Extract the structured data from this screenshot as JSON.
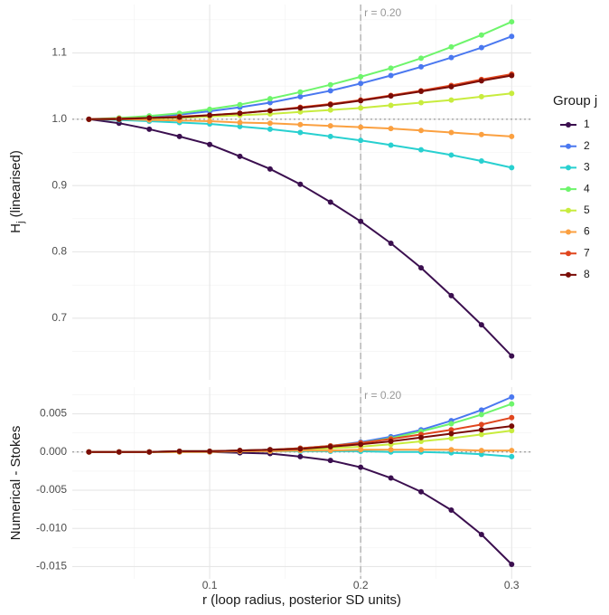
{
  "chart_data": [
    {
      "type": "line",
      "ylabel_main": "H",
      "ylabel_sub": "j",
      "ylabel_rest": " (linearised)",
      "legend_title": "Group j",
      "annotation": "r = 0.20",
      "vline": 0.2,
      "hline": 1,
      "x": [
        0.02,
        0.04,
        0.06,
        0.08,
        0.1,
        0.12,
        0.14,
        0.16,
        0.18,
        0.2,
        0.22,
        0.24,
        0.26,
        0.28,
        0.3
      ],
      "xlim": [
        0.009,
        0.313
      ],
      "xticks": [
        0.1,
        0.2,
        0.3
      ],
      "xminor": [
        0.05,
        0.15,
        0.25
      ],
      "ylim": [
        0.607,
        1.173
      ],
      "yticks": [
        0.7,
        0.8,
        0.9,
        {
          "value": 1,
          "label": "1.0"
        },
        1.1
      ],
      "yminor": [
        0.65,
        0.75,
        0.85,
        0.95,
        1.05,
        1.15
      ],
      "grid": true,
      "series": [
        {
          "name": "1",
          "color": "#3b0f4f",
          "values": [
            1.0,
            0.994,
            0.985,
            0.974,
            0.962,
            0.944,
            0.925,
            0.902,
            0.875,
            0.846,
            0.813,
            0.776,
            0.734,
            0.69,
            0.643
          ]
        },
        {
          "name": "2",
          "color": "#4a78f0",
          "values": [
            1.0,
            1.001,
            1.004,
            1.007,
            1.012,
            1.018,
            1.025,
            1.034,
            1.043,
            1.054,
            1.066,
            1.079,
            1.093,
            1.108,
            1.125
          ]
        },
        {
          "name": "3",
          "color": "#28d0d0",
          "values": [
            1.0,
            0.999,
            0.997,
            0.995,
            0.993,
            0.989,
            0.985,
            0.98,
            0.974,
            0.968,
            0.961,
            0.954,
            0.946,
            0.937,
            0.927
          ]
        },
        {
          "name": "4",
          "color": "#6ef56c",
          "values": [
            1.0,
            1.002,
            1.005,
            1.009,
            1.015,
            1.022,
            1.031,
            1.041,
            1.052,
            1.064,
            1.077,
            1.092,
            1.109,
            1.127,
            1.147
          ]
        },
        {
          "name": "5",
          "color": "#c8ec3e",
          "values": [
            1.0,
            1.0,
            1.001,
            1.002,
            1.004,
            1.006,
            1.008,
            1.011,
            1.014,
            1.017,
            1.021,
            1.025,
            1.029,
            1.034,
            1.039
          ]
        },
        {
          "name": "6",
          "color": "#fba040",
          "values": [
            1.0,
            1.0,
            0.999,
            0.998,
            0.997,
            0.995,
            0.994,
            0.992,
            0.99,
            0.988,
            0.986,
            0.983,
            0.98,
            0.977,
            0.974
          ]
        },
        {
          "name": "7",
          "color": "#e0461e",
          "values": [
            1.0,
            1.001,
            1.002,
            1.004,
            1.006,
            1.009,
            1.013,
            1.018,
            1.023,
            1.029,
            1.036,
            1.043,
            1.051,
            1.06,
            1.068
          ]
        },
        {
          "name": "8",
          "color": "#7a0c07",
          "values": [
            1.0,
            1.0,
            1.002,
            1.003,
            1.006,
            1.009,
            1.013,
            1.017,
            1.022,
            1.028,
            1.035,
            1.042,
            1.049,
            1.058,
            1.066
          ]
        }
      ]
    },
    {
      "type": "line",
      "ylabel": "Numerical - Stokes",
      "xlabel": "r (loop radius, posterior SD units)",
      "annotation": "r = 0.20",
      "vline": 0.2,
      "hline": 0,
      "x": [
        0.02,
        0.04,
        0.06,
        0.08,
        0.1,
        0.12,
        0.14,
        0.16,
        0.18,
        0.2,
        0.22,
        0.24,
        0.26,
        0.28,
        0.3
      ],
      "xlim": [
        0.009,
        0.313
      ],
      "xticks": [
        0.1,
        0.2,
        0.3
      ],
      "xminor": [
        0.05,
        0.15,
        0.25
      ],
      "ylim": [
        -0.0166,
        0.0085
      ],
      "yticks": [
        {
          "value": -0.015,
          "label": "-0.015"
        },
        {
          "value": -0.01,
          "label": "-0.010"
        },
        -0.005,
        {
          "value": 0,
          "label": "0.000"
        },
        0.005
      ],
      "yminor": [
        -0.0125,
        -0.0075,
        -0.0025,
        0.0025,
        0.0075
      ],
      "grid": true,
      "series": [
        {
          "name": "1",
          "color": "#3b0f4f",
          "values": [
            0,
            0,
            0,
            0,
            0,
            -0.0001,
            -0.0002,
            -0.0006,
            -0.0011,
            -0.002,
            -0.0034,
            -0.0052,
            -0.0076,
            -0.0108,
            -0.0147
          ]
        },
        {
          "name": "2",
          "color": "#4a78f0",
          "values": [
            0,
            0,
            0,
            0.0001,
            0.0001,
            0.0002,
            0.0003,
            0.0005,
            0.0008,
            0.0013,
            0.002,
            0.0029,
            0.0041,
            0.0055,
            0.0072
          ]
        },
        {
          "name": "3",
          "color": "#28d0d0",
          "values": [
            0,
            0,
            0,
            0,
            0,
            0.0001,
            0.0001,
            0.0001,
            0.0001,
            0.0001,
            0,
            0,
            -0.0001,
            -0.0003,
            -0.0006
          ]
        },
        {
          "name": "4",
          "color": "#6ef56c",
          "values": [
            0,
            0,
            0,
            0.0001,
            0.0001,
            0.0002,
            0.0003,
            0.0005,
            0.0008,
            0.0012,
            0.0018,
            0.0027,
            0.0037,
            0.0049,
            0.0063
          ]
        },
        {
          "name": "5",
          "color": "#c8ec3e",
          "values": [
            0,
            0,
            0,
            0,
            0.0001,
            0.0001,
            0.0002,
            0.0003,
            0.0005,
            0.0007,
            0.001,
            0.0014,
            0.0018,
            0.0023,
            0.0028
          ]
        },
        {
          "name": "6",
          "color": "#fba040",
          "values": [
            0,
            0,
            0,
            0,
            0,
            0.0001,
            0.0001,
            0.0002,
            0.0002,
            0.0003,
            0.0003,
            0.0003,
            0.0003,
            0.0002,
            0.0002
          ]
        },
        {
          "name": "7",
          "color": "#e0461e",
          "values": [
            0,
            0,
            0,
            0.0001,
            0.0001,
            0.0002,
            0.0003,
            0.0005,
            0.0008,
            0.0012,
            0.0017,
            0.0023,
            0.0029,
            0.0036,
            0.0045
          ]
        },
        {
          "name": "8",
          "color": "#7a0c07",
          "values": [
            0,
            0,
            0,
            0.0001,
            0.0001,
            0.0002,
            0.0003,
            0.0004,
            0.0007,
            0.001,
            0.0014,
            0.0019,
            0.0024,
            0.0029,
            0.0034
          ]
        }
      ]
    }
  ]
}
